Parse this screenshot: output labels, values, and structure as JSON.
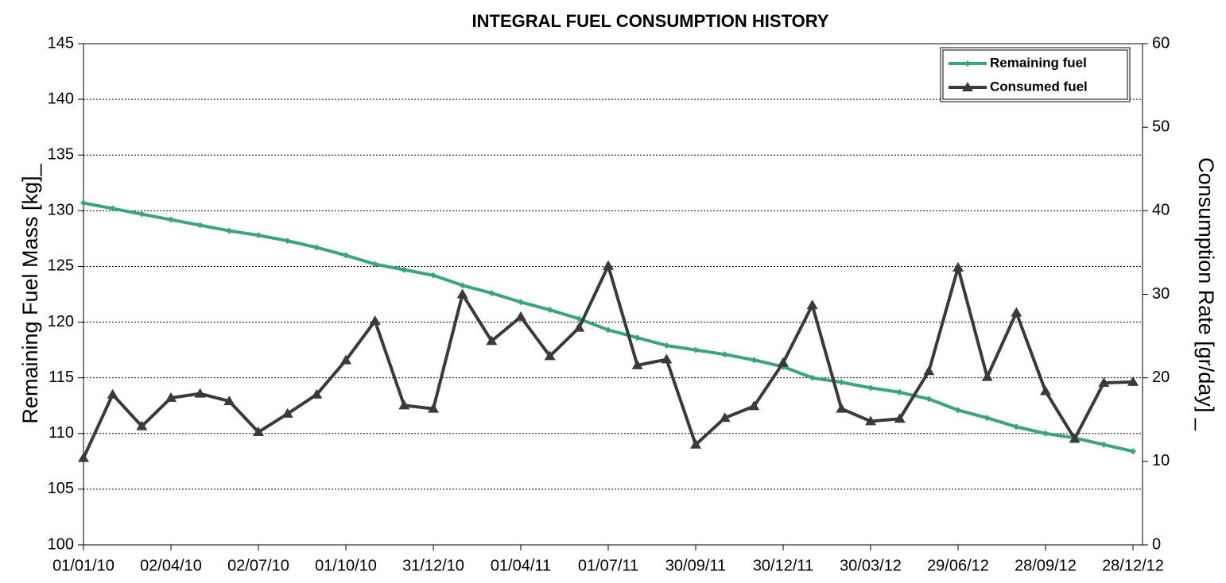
{
  "chart_data": {
    "type": "line",
    "title": "INTEGRAL FUEL CONSUMPTION  HISTORY",
    "y_label": "Remaining Fuel Mass [kg]_",
    "y2_label": "Consumption Rate [gr/day] _",
    "categories": [
      "01/01/10",
      null,
      null,
      "02/04/10",
      null,
      null,
      "02/07/10",
      null,
      null,
      "01/10/10",
      null,
      null,
      "31/12/10",
      null,
      null,
      "01/04/11",
      null,
      null,
      "01/07/11",
      null,
      null,
      "30/09/11",
      null,
      null,
      "30/12/11",
      null,
      null,
      "30/03/12",
      null,
      null,
      "29/06/12",
      null,
      null,
      "28/09/12",
      null,
      null,
      "28/12/12"
    ],
    "series": [
      {
        "name": "Remaining fuel",
        "color": "#3aa57a",
        "marker": "diamond",
        "values": [
          130.7,
          130.2,
          129.7,
          129.2,
          128.7,
          128.2,
          127.8,
          127.3,
          126.7,
          126.0,
          125.2,
          124.7,
          124.2,
          123.3,
          122.6,
          121.8,
          121.1,
          120.3,
          119.3,
          118.6,
          117.9,
          117.5,
          117.1,
          116.6,
          116.0,
          115.0,
          114.6,
          114.1,
          113.7,
          113.1,
          112.1,
          111.4,
          110.6,
          110.0,
          109.6,
          109.0,
          108.4
        ]
      },
      {
        "name": "Consumed fuel",
        "color": "#3a3a3a",
        "marker": "triangle",
        "axis": "y2",
        "values": [
          10.4,
          18.0,
          14.2,
          17.6,
          18.1,
          17.2,
          13.5,
          15.7,
          18.0,
          22.1,
          26.8,
          16.7,
          16.3,
          30.0,
          24.4,
          27.3,
          22.6,
          26.0,
          33.4,
          21.5,
          22.2,
          12.0,
          15.2,
          16.6,
          21.8,
          28.7,
          16.3,
          14.8,
          15.1,
          20.8,
          33.2,
          20.1,
          27.8,
          18.4,
          12.7,
          19.4,
          19.5
        ]
      }
    ],
    "ylim": [
      100,
      145
    ],
    "yticks": [
      100,
      105,
      110,
      115,
      120,
      125,
      130,
      135,
      140,
      145
    ],
    "y2lim": [
      0,
      60
    ],
    "y2ticks": [
      0,
      10,
      20,
      30,
      40,
      50,
      60
    ],
    "grid": true,
    "legend": "upper right"
  }
}
